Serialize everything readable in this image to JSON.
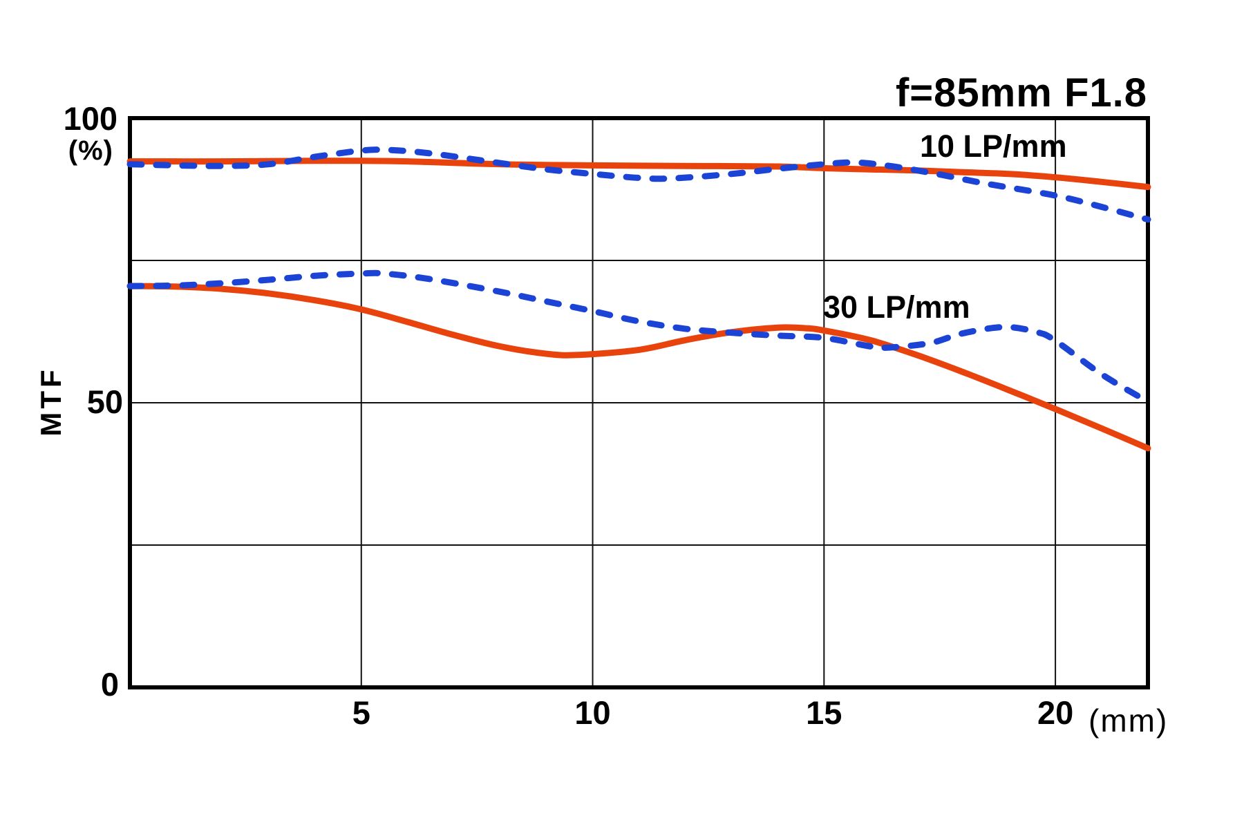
{
  "title": "f=85mm F1.8",
  "axes": {
    "y_label_100": "100",
    "y_unit": "(%)",
    "y_label_50": "50",
    "y_label_0": "0",
    "y_axis_name": "MTF",
    "x_unit": "(mm)",
    "x_tick_labels": [
      "5",
      "10",
      "15",
      "20"
    ]
  },
  "legend": {
    "series_10": "10 LP/mm",
    "series_30": "30 LP/mm"
  },
  "colors": {
    "solid_line": "#E8430D",
    "dashed_line": "#1B43D5",
    "grid": "#111111",
    "border": "#000000",
    "background": "#FFFFFF"
  },
  "chart_data": {
    "type": "line",
    "title": "f=85mm F1.8",
    "xlabel": "(mm)",
    "ylabel": "MTF (%)",
    "xlim": [
      0,
      22
    ],
    "ylim": [
      0,
      100
    ],
    "x_ticks": [
      5,
      10,
      15,
      20
    ],
    "y_ticks_labeled": [
      0,
      50,
      100
    ],
    "y_gridlines": [
      25,
      50,
      75
    ],
    "grid": true,
    "legend_position": "inside-top-right",
    "series": [
      {
        "name": "10 LP/mm solid",
        "group": "10 LP/mm",
        "style": "solid",
        "color": "#E8430D",
        "points": [
          [
            0,
            92.4
          ],
          [
            2,
            92.4
          ],
          [
            4,
            92.5
          ],
          [
            5,
            92.5
          ],
          [
            6,
            92.4
          ],
          [
            8,
            91.9
          ],
          [
            10,
            91.7
          ],
          [
            12,
            91.6
          ],
          [
            14,
            91.5
          ],
          [
            15,
            91.2
          ],
          [
            16,
            91.0
          ],
          [
            17,
            90.8
          ],
          [
            18,
            90.5
          ],
          [
            19,
            90.2
          ],
          [
            20,
            89.6
          ],
          [
            21,
            88.8
          ],
          [
            22,
            87.9
          ]
        ]
      },
      {
        "name": "10 LP/mm dashed",
        "group": "10 LP/mm",
        "style": "dashed",
        "color": "#1B43D5",
        "points": [
          [
            0,
            91.9
          ],
          [
            1,
            91.7
          ],
          [
            2,
            91.6
          ],
          [
            3,
            91.9
          ],
          [
            4,
            93.2
          ],
          [
            5,
            94.3
          ],
          [
            5.6,
            94.4
          ],
          [
            6.5,
            93.8
          ],
          [
            8,
            92.1
          ],
          [
            9,
            91.0
          ],
          [
            10,
            90.2
          ],
          [
            11,
            89.5
          ],
          [
            11.7,
            89.4
          ],
          [
            13,
            90.2
          ],
          [
            14,
            91.1
          ],
          [
            15,
            91.9
          ],
          [
            15.7,
            92.2
          ],
          [
            16.5,
            91.5
          ],
          [
            17.5,
            90.1
          ],
          [
            18.5,
            88.5
          ],
          [
            20,
            86.4
          ],
          [
            21,
            84.4
          ],
          [
            22,
            82.2
          ]
        ]
      },
      {
        "name": "30 LP/mm solid",
        "group": "30 LP/mm",
        "style": "solid",
        "color": "#E8430D",
        "points": [
          [
            0,
            70.5
          ],
          [
            1,
            70.4
          ],
          [
            2,
            70.0
          ],
          [
            3,
            69.2
          ],
          [
            4,
            68.0
          ],
          [
            5,
            66.4
          ],
          [
            6,
            64.2
          ],
          [
            7,
            61.9
          ],
          [
            8,
            59.9
          ],
          [
            9,
            58.6
          ],
          [
            9.7,
            58.4
          ],
          [
            11,
            59.3
          ],
          [
            12,
            61.0
          ],
          [
            13,
            62.4
          ],
          [
            14,
            63.2
          ],
          [
            14.6,
            63.1
          ],
          [
            15,
            62.7
          ],
          [
            16,
            61.0
          ],
          [
            17,
            58.4
          ],
          [
            18,
            55.4
          ],
          [
            19,
            52.2
          ],
          [
            20,
            48.9
          ],
          [
            21,
            45.5
          ],
          [
            22,
            42.0
          ]
        ]
      },
      {
        "name": "30 LP/mm dashed",
        "group": "30 LP/mm",
        "style": "dashed",
        "color": "#1B43D5",
        "points": [
          [
            0,
            70.5
          ],
          [
            1,
            70.6
          ],
          [
            2,
            71.0
          ],
          [
            3,
            71.6
          ],
          [
            4,
            72.3
          ],
          [
            5,
            72.7
          ],
          [
            5.5,
            72.7
          ],
          [
            6.5,
            71.7
          ],
          [
            8,
            69.5
          ],
          [
            9,
            67.8
          ],
          [
            10,
            66.1
          ],
          [
            11,
            64.3
          ],
          [
            12,
            63.0
          ],
          [
            13,
            62.3
          ],
          [
            14,
            61.8
          ],
          [
            15,
            61.4
          ],
          [
            16,
            59.9
          ],
          [
            16.4,
            59.7
          ],
          [
            17.3,
            60.5
          ],
          [
            18,
            62.2
          ],
          [
            18.9,
            63.3
          ],
          [
            19.6,
            62.4
          ],
          [
            20,
            60.9
          ],
          [
            21,
            55.0
          ],
          [
            22,
            50.2
          ]
        ]
      }
    ]
  }
}
